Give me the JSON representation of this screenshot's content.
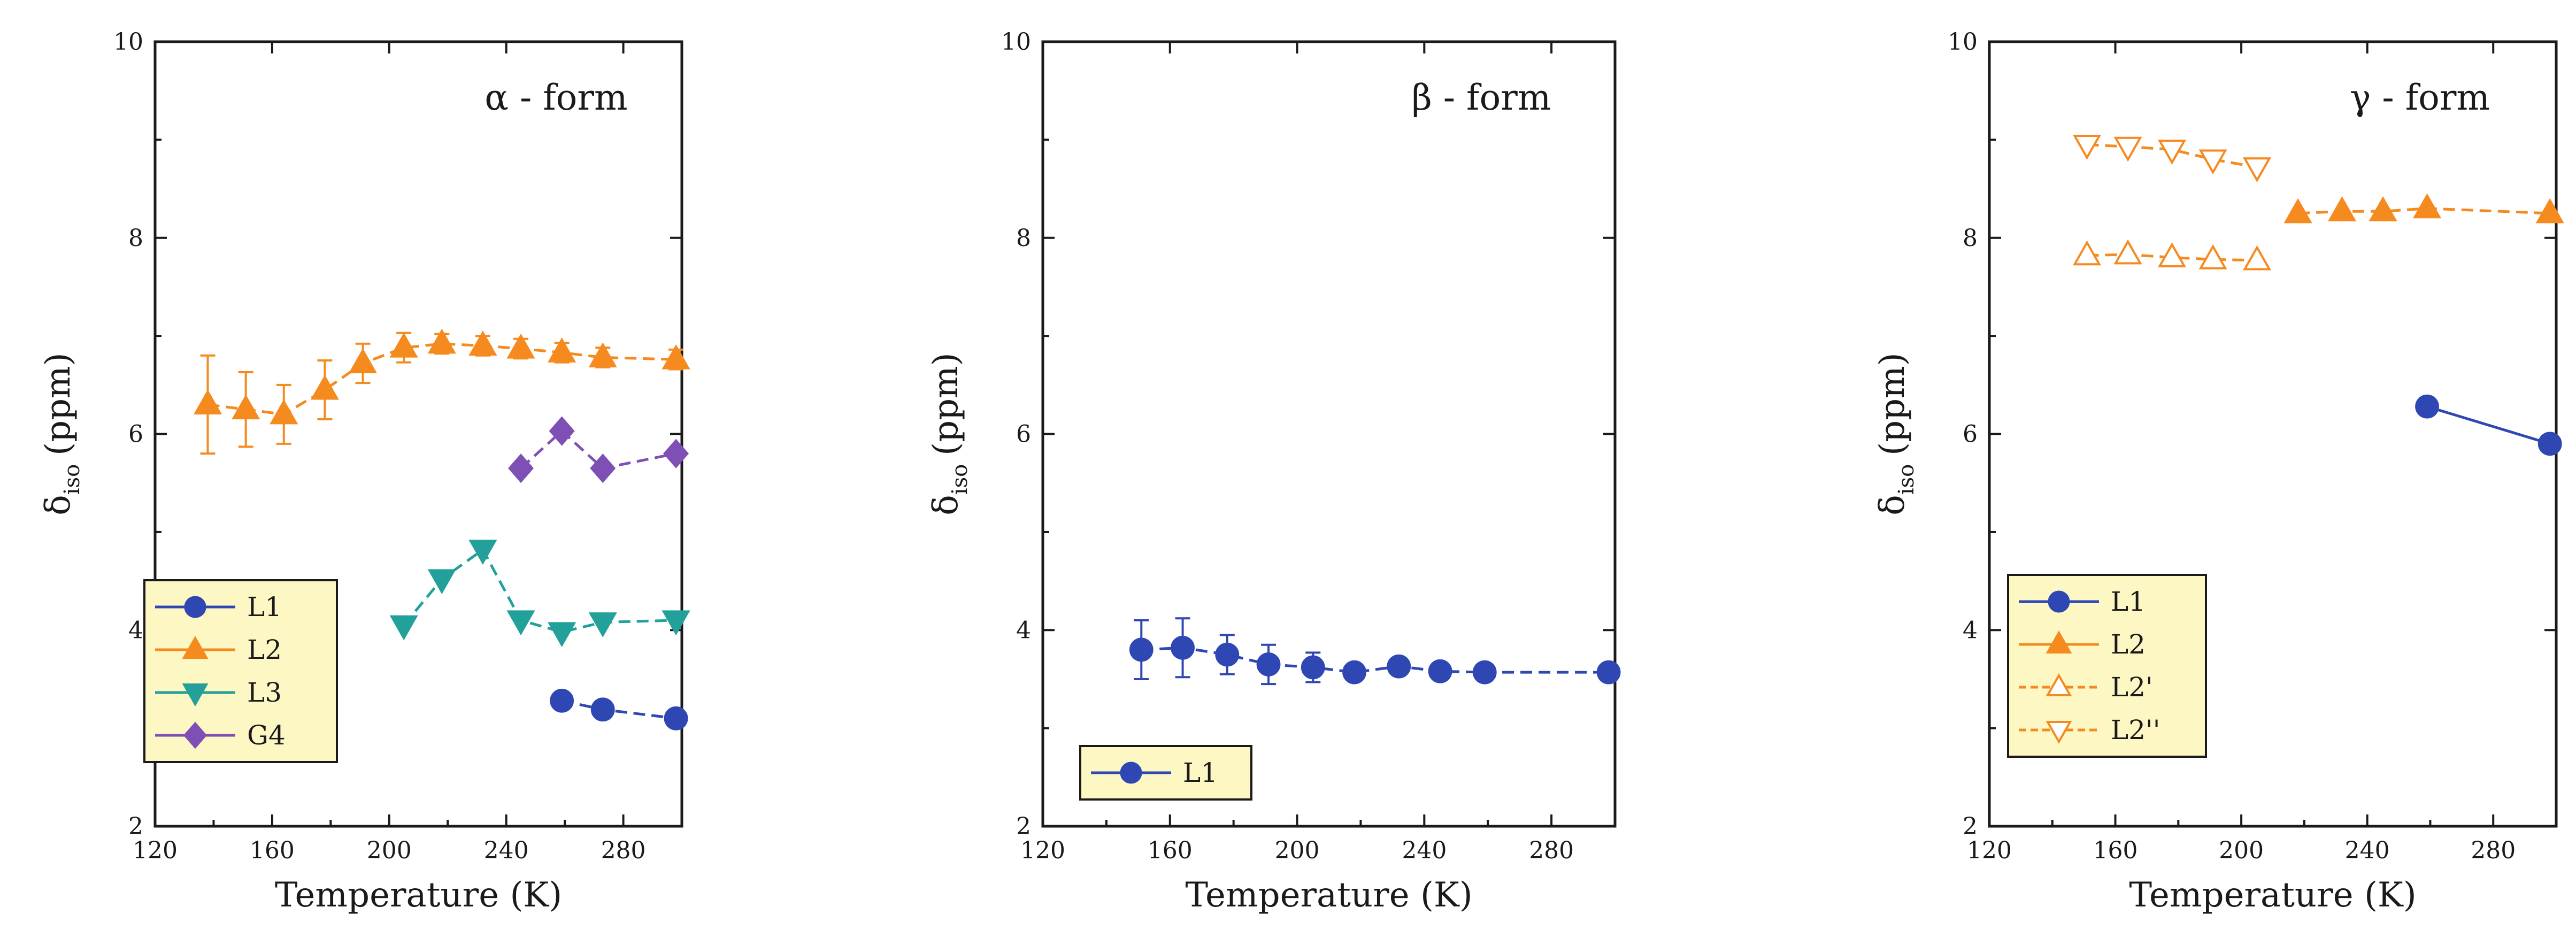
{
  "colors": {
    "L1": "#2f47b3",
    "L2": "#f58a1f",
    "L3": "#23a09a",
    "G4": "#7e4fb5",
    "legend_bg": "#fdf7c3"
  },
  "chart_data": [
    {
      "type": "line",
      "title": "α - form",
      "xlabel": "Temperature (K)",
      "ylabel_main": "δ",
      "ylabel_sub": "iso",
      "ylabel_unit": "(ppm)",
      "xlim": [
        120,
        300
      ],
      "ylim": [
        2,
        10
      ],
      "xticks": [
        120,
        160,
        200,
        240,
        280
      ],
      "yticks": [
        2,
        4,
        6,
        8,
        10
      ],
      "legend": {
        "position": "bottom-left",
        "entries": [
          "L1",
          "L2",
          "L3",
          "G4"
        ]
      },
      "series": [
        {
          "name": "L1",
          "color": "#2f47b3",
          "marker": "circle",
          "line": "dashed",
          "x": [
            259,
            273,
            298
          ],
          "y": [
            3.28,
            3.19,
            3.1
          ]
        },
        {
          "name": "L2",
          "color": "#f58a1f",
          "marker": "triangle-up",
          "line": "dashed",
          "x": [
            138,
            151,
            164,
            178,
            191,
            205,
            218,
            232,
            245,
            259,
            273,
            298
          ],
          "y": [
            6.3,
            6.25,
            6.2,
            6.45,
            6.72,
            6.88,
            6.92,
            6.9,
            6.87,
            6.83,
            6.78,
            6.76
          ],
          "err": [
            0.5,
            0.38,
            0.3,
            0.3,
            0.2,
            0.15,
            0.1,
            0.1,
            0.1,
            0.1,
            0.1,
            0.1
          ]
        },
        {
          "name": "L3",
          "color": "#23a09a",
          "marker": "triangle-down",
          "line": "dashed",
          "x": [
            205,
            218,
            232,
            245,
            259,
            273,
            298
          ],
          "y": [
            4.05,
            4.52,
            4.82,
            4.1,
            3.98,
            4.08,
            4.1
          ]
        },
        {
          "name": "G4",
          "color": "#7e4fb5",
          "marker": "diamond",
          "line": "dashed",
          "x": [
            245,
            259,
            273,
            298
          ],
          "y": [
            5.65,
            6.03,
            5.65,
            5.8
          ]
        }
      ]
    },
    {
      "type": "line",
      "title": "β - form",
      "xlabel": "Temperature (K)",
      "ylabel_main": "δ",
      "ylabel_sub": "iso",
      "ylabel_unit": "(ppm)",
      "xlim": [
        120,
        300
      ],
      "ylim": [
        2,
        10
      ],
      "xticks": [
        120,
        160,
        200,
        240,
        280
      ],
      "yticks": [
        2,
        4,
        6,
        8,
        10
      ],
      "legend": {
        "position": "bottom-left",
        "entries": [
          "L1"
        ]
      },
      "series": [
        {
          "name": "L1",
          "color": "#2f47b3",
          "marker": "circle",
          "line": "dashed",
          "x": [
            151,
            164,
            178,
            191,
            205,
            218,
            232,
            245,
            259,
            298
          ],
          "y": [
            3.8,
            3.82,
            3.75,
            3.65,
            3.62,
            3.57,
            3.63,
            3.58,
            3.57,
            3.57
          ],
          "err": [
            0.3,
            0.3,
            0.2,
            0.2,
            0.15,
            0.05,
            0.05,
            0.05,
            0.05,
            0.05
          ]
        }
      ]
    },
    {
      "type": "line",
      "title": "γ - form",
      "xlabel": "Temperature (K)",
      "ylabel_main": "δ",
      "ylabel_sub": "iso",
      "ylabel_unit": "(ppm)",
      "xlim": [
        120,
        300
      ],
      "ylim": [
        2,
        10
      ],
      "xticks": [
        120,
        160,
        200,
        240,
        280
      ],
      "yticks": [
        2,
        4,
        6,
        8,
        10
      ],
      "legend": {
        "position": "bottom-left",
        "entries": [
          "L1",
          "L2",
          "L2'",
          "L2''"
        ]
      },
      "series": [
        {
          "name": "L1",
          "color": "#2f47b3",
          "marker": "circle",
          "line": "solid",
          "x": [
            259,
            298
          ],
          "y": [
            6.28,
            5.9
          ]
        },
        {
          "name": "L2",
          "color": "#f58a1f",
          "marker": "triangle-up",
          "line": "dashed",
          "x": [
            218,
            232,
            245,
            259,
            298
          ],
          "y": [
            8.25,
            8.27,
            8.27,
            8.3,
            8.25
          ]
        },
        {
          "name": "L2'",
          "color": "#f58a1f",
          "marker": "triangle-up-open",
          "line": "dashed",
          "x": [
            151,
            164,
            178,
            191,
            205
          ],
          "y": [
            7.82,
            7.83,
            7.8,
            7.78,
            7.77
          ]
        },
        {
          "name": "L2''",
          "color": "#f58a1f",
          "marker": "triangle-down-open",
          "line": "dashed",
          "x": [
            151,
            164,
            178,
            191,
            205
          ],
          "y": [
            8.95,
            8.93,
            8.9,
            8.8,
            8.72
          ]
        }
      ]
    }
  ]
}
